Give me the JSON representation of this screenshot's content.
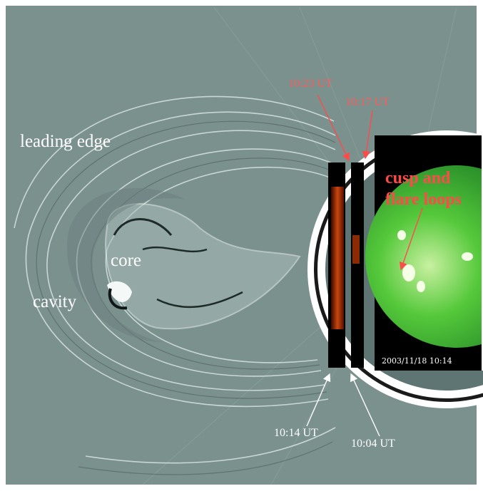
{
  "labels": {
    "leading_edge": "leading edge",
    "core": "core",
    "cavity": "cavity",
    "cusp_line1": "cusp and",
    "cusp_line2": "flare loops",
    "time_1023": "10:23 UT",
    "time_1017": "10:17 UT",
    "time_1014": "10:14 UT",
    "time_1004": "10:04 UT",
    "date_stamp": "2003/11/18  10:14"
  },
  "colors": {
    "background": "#7b918e",
    "occulter": "#5e7573",
    "annotation_red": "#ff4a4a",
    "annotation_white": "#ffffff",
    "eit_green": "#35b534"
  }
}
